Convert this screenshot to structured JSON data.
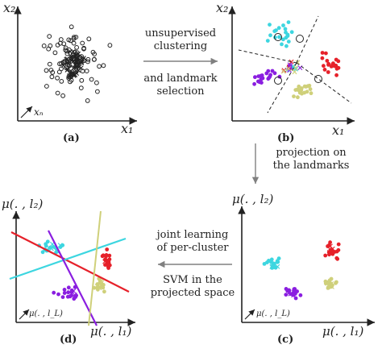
{
  "panels": {
    "a": {
      "tag": "(a)",
      "y_label": "x₂",
      "x_label": "x₁",
      "corner_label": "xₙ"
    },
    "b": {
      "tag": "(b)",
      "y_label": "x₂",
      "x_label": "x₁"
    },
    "c": {
      "tag": "(c)",
      "y_label": "μ(. , l₂)",
      "x_label": "μ(. , l₁)",
      "corner_label": "μ(. , l_L)"
    },
    "d": {
      "tag": "(d)",
      "y_label": "μ(. , l₂)",
      "x_label": "μ(. , l₁)",
      "corner_label": "μ(. , l_L)"
    }
  },
  "arrows": {
    "top": {
      "line1": "unsupervised",
      "line2": "clustering",
      "line3": "and landmark",
      "line4": "selection"
    },
    "right": {
      "line1": "projection on",
      "line2": "the landmarks"
    },
    "bottom": {
      "line1": "joint learning",
      "line2": "of per-cluster",
      "line3": "SVM in the",
      "line4": "projected space"
    }
  },
  "colors": {
    "cyan": "#3dd6e0",
    "red": "#e6212a",
    "purple": "#8a1ee0",
    "olive": "#cfd07a",
    "ink": "#222222",
    "arrow": "#808080"
  }
}
